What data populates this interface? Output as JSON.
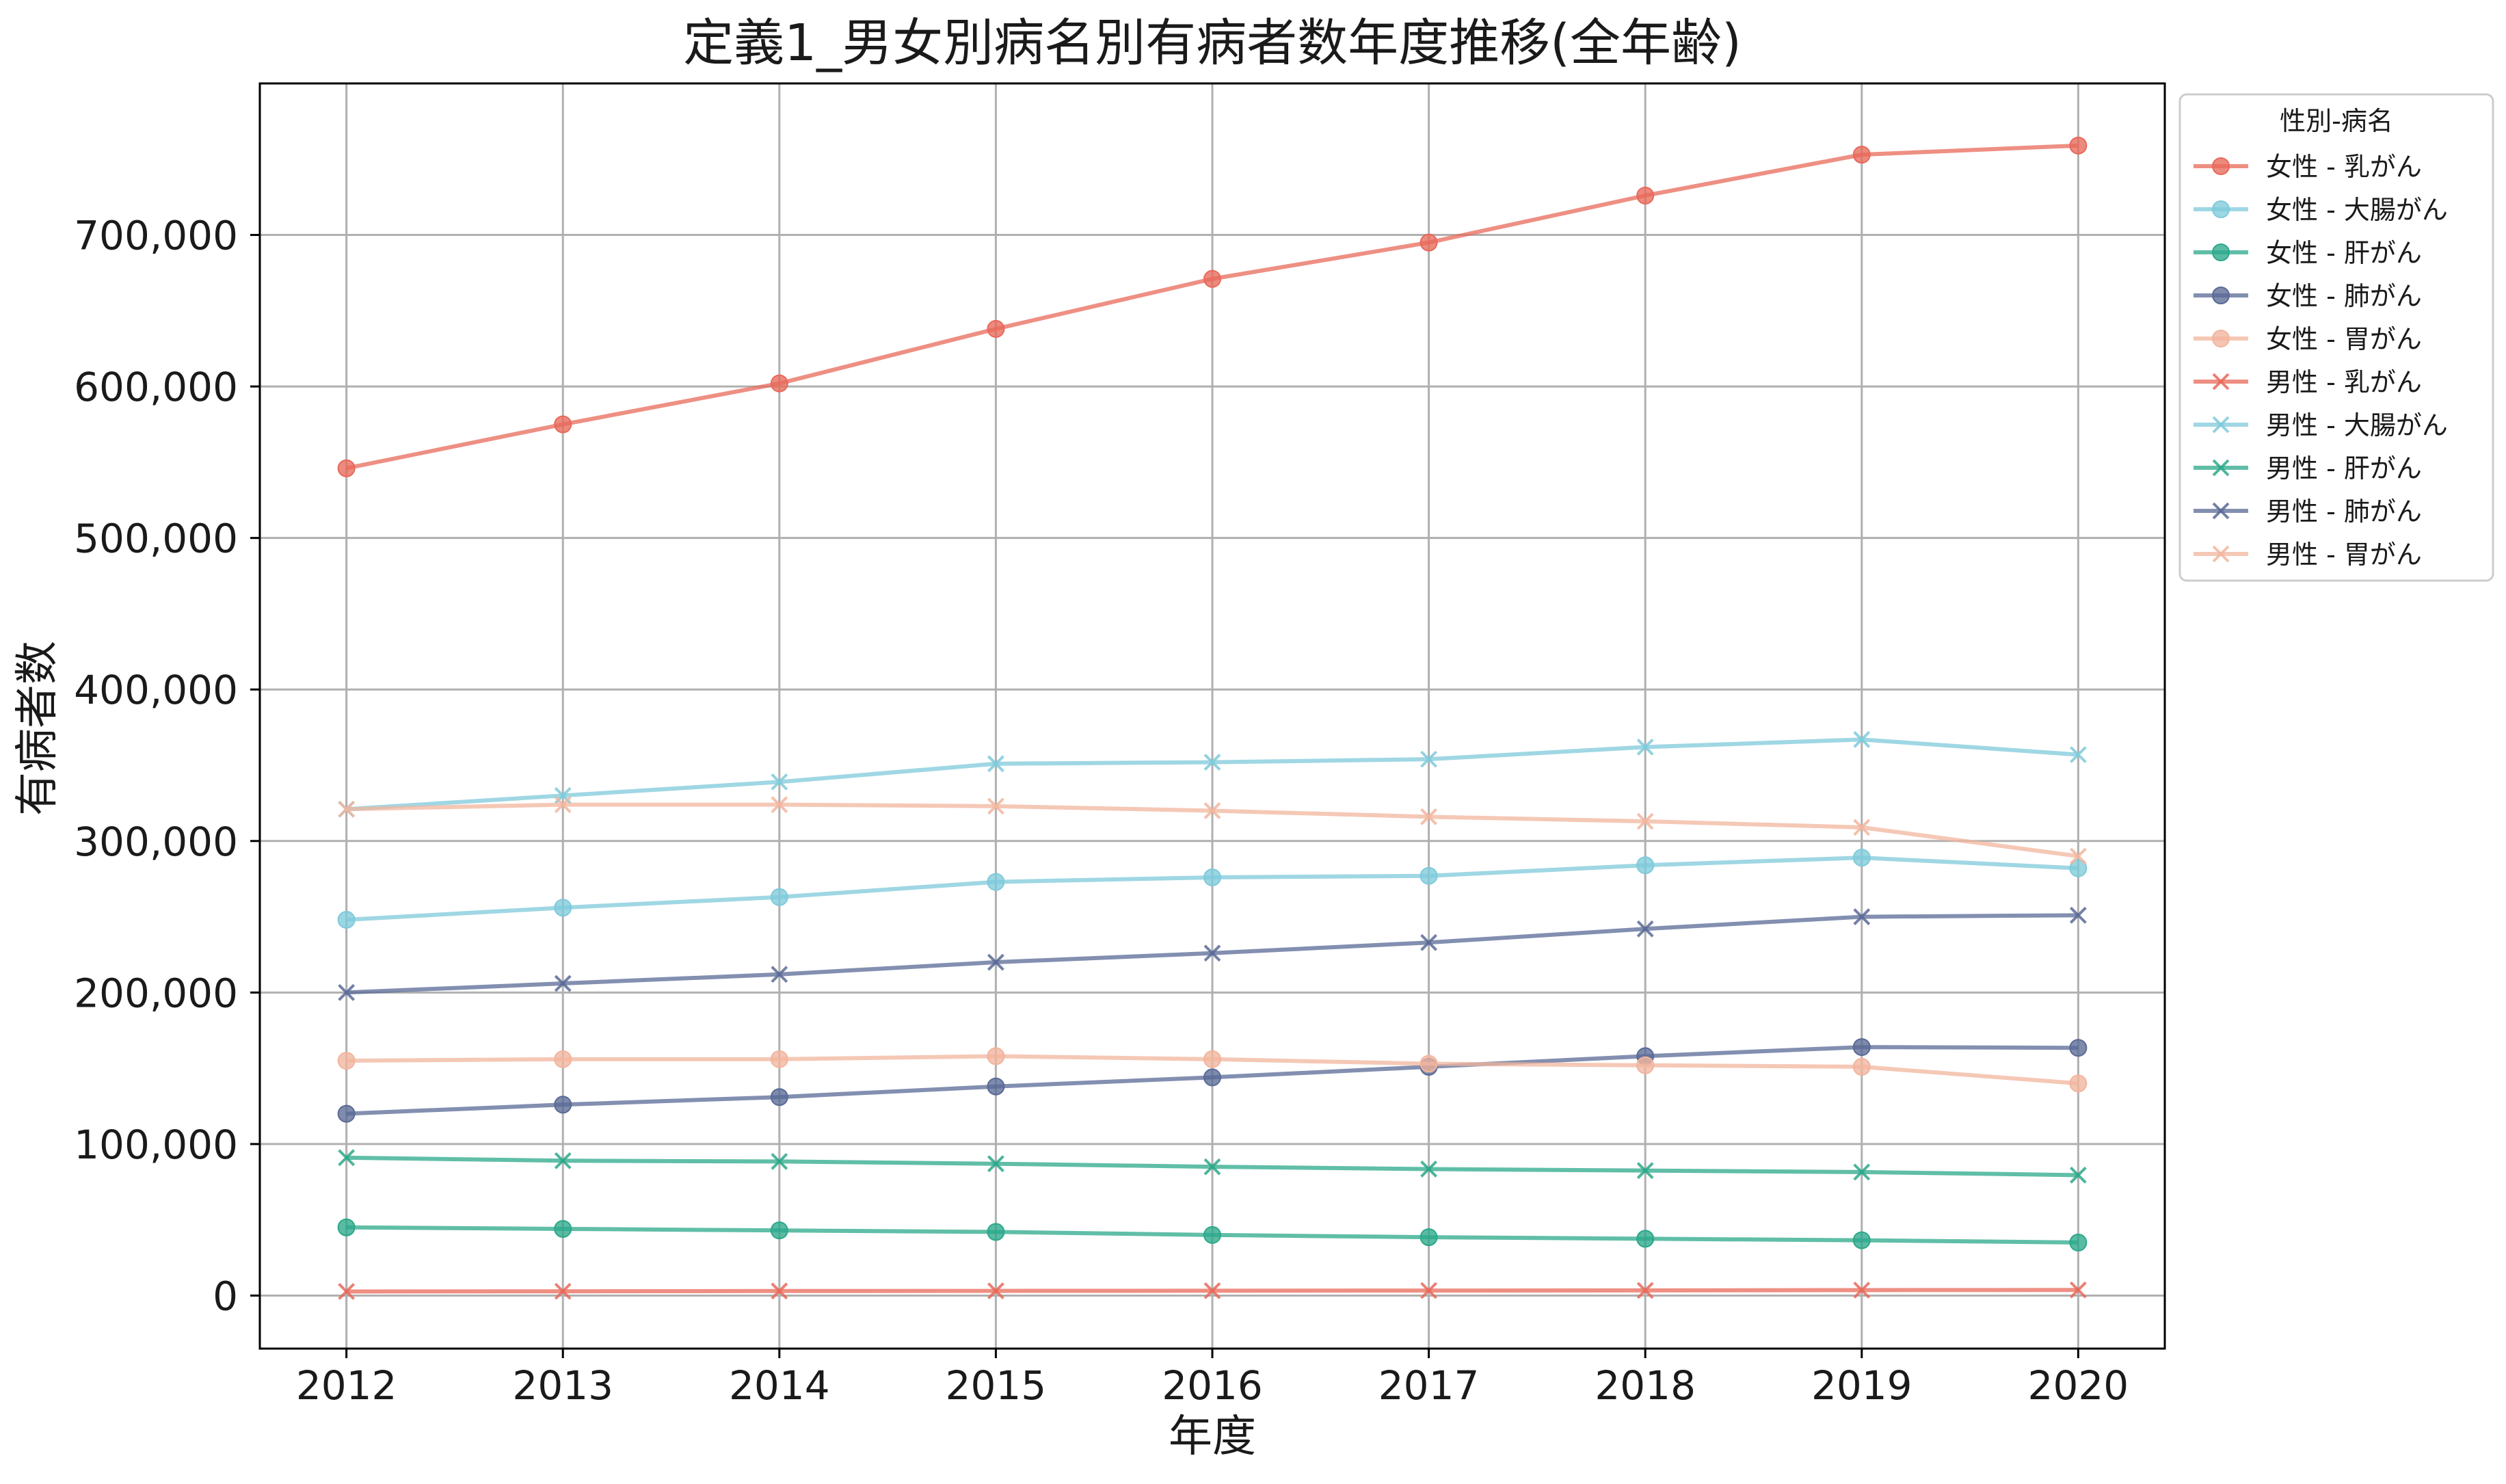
{
  "chart_data": {
    "type": "line",
    "title": "定義1_男女別病名別有病者数年度推移(全年齢)",
    "xlabel": "年度",
    "ylabel": "有病者数",
    "x": [
      2012,
      2013,
      2014,
      2015,
      2016,
      2017,
      2018,
      2019,
      2020
    ],
    "x_ticks": [
      "2012",
      "2013",
      "2014",
      "2015",
      "2016",
      "2017",
      "2018",
      "2019",
      "2020"
    ],
    "xlim": [
      2011.6,
      2020.4
    ],
    "ylim": [
      -35000,
      800000
    ],
    "y_ticks": [
      0,
      100000,
      200000,
      300000,
      400000,
      500000,
      600000,
      700000
    ],
    "y_tick_labels": [
      "0",
      "100,000",
      "200,000",
      "300,000",
      "400,000",
      "500,000",
      "600,000",
      "700,000"
    ],
    "grid": true,
    "legend_title": "性別-病名",
    "legend_position": "outside-top-right",
    "series": [
      {
        "name": "女性 - 乳がん",
        "marker": "circle",
        "color": "#e8695a",
        "values": [
          546000,
          575000,
          602000,
          638000,
          671000,
          695000,
          726000,
          753000,
          759000
        ]
      },
      {
        "name": "女性 - 大腸がん",
        "marker": "circle",
        "color": "#7fcadb",
        "values": [
          248000,
          256000,
          263000,
          273000,
          276000,
          277000,
          284000,
          289000,
          282000
        ]
      },
      {
        "name": "女性 - 肝がん",
        "marker": "circle",
        "color": "#2ba88a",
        "values": [
          45000,
          44000,
          43000,
          42000,
          40000,
          38500,
          37500,
          36500,
          35000
        ]
      },
      {
        "name": "女性 - 肺がん",
        "marker": "circle",
        "color": "#5a6a96",
        "values": [
          120000,
          126000,
          131000,
          138000,
          144000,
          151000,
          158000,
          164000,
          163500
        ]
      },
      {
        "name": "女性 - 胃がん",
        "marker": "circle",
        "color": "#f2b59e",
        "values": [
          155000,
          156000,
          156000,
          158000,
          156000,
          153000,
          152000,
          151000,
          140000
        ]
      },
      {
        "name": "男性 - 乳がん",
        "marker": "x",
        "color": "#e8695a",
        "values": [
          2700,
          2800,
          3000,
          3100,
          3200,
          3300,
          3400,
          3600,
          3700
        ]
      },
      {
        "name": "男性 - 大腸がん",
        "marker": "x",
        "color": "#7fcadb",
        "values": [
          321000,
          330000,
          339000,
          351000,
          352000,
          354000,
          362000,
          367000,
          357000
        ]
      },
      {
        "name": "男性 - 肝がん",
        "marker": "x",
        "color": "#2ba88a",
        "values": [
          91000,
          89000,
          88500,
          87000,
          85000,
          83500,
          82500,
          81500,
          79500
        ]
      },
      {
        "name": "男性 - 肺がん",
        "marker": "x",
        "color": "#5a6a96",
        "values": [
          200000,
          206000,
          212000,
          220000,
          226000,
          233000,
          242000,
          250000,
          251000
        ]
      },
      {
        "name": "男性 - 胃がん",
        "marker": "x",
        "color": "#f2b59e",
        "values": [
          321000,
          324000,
          324000,
          323000,
          320000,
          316000,
          313000,
          309000,
          290000
        ]
      }
    ]
  }
}
